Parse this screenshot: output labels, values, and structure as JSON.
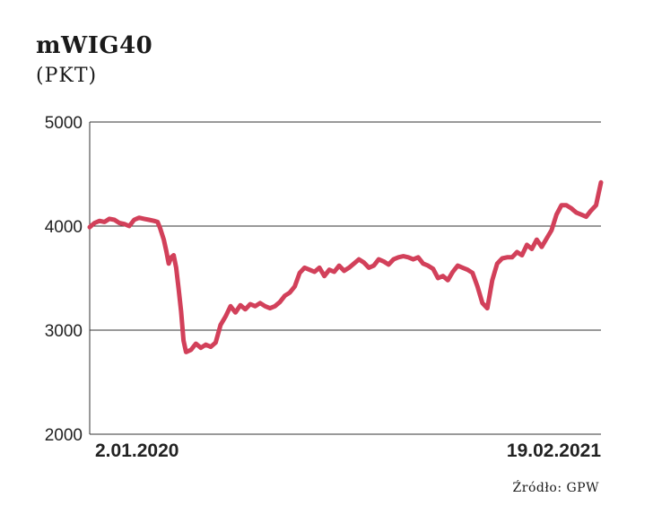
{
  "header": {
    "title": "mWIG40",
    "unit": "(PKT)"
  },
  "source": "Źródło: GPW",
  "colors": {
    "line": "#d2405a",
    "grid": "#333333",
    "text": "#222222"
  },
  "chart_data": {
    "type": "line",
    "title": "mWIG40",
    "ylabel": "(PKT)",
    "ylim": [
      2000,
      5000
    ],
    "yticks": [
      2000,
      3000,
      4000,
      5000
    ],
    "ytick_labels": [
      "2000",
      "3000",
      "4000",
      "5000"
    ],
    "x_start_label": "2.01.2020",
    "x_end_label": "19.02.2021",
    "grid": "horizontal",
    "series": [
      {
        "x": [
          "2020-01-02",
          "2020-01-06",
          "2020-01-10",
          "2020-01-14",
          "2020-01-18",
          "2020-01-22",
          "2020-01-26",
          "2020-01-30",
          "2020-02-03",
          "2020-02-07",
          "2020-02-11",
          "2020-02-15",
          "2020-02-19",
          "2020-02-23",
          "2020-02-26",
          "2020-02-28",
          "2020-03-02",
          "2020-03-04",
          "2020-03-06",
          "2020-03-08",
          "2020-03-10",
          "2020-03-12",
          "2020-03-14",
          "2020-03-16",
          "2020-03-18",
          "2020-03-20",
          "2020-03-24",
          "2020-03-28",
          "2020-04-01",
          "2020-04-05",
          "2020-04-09",
          "2020-04-13",
          "2020-04-17",
          "2020-04-21",
          "2020-04-25",
          "2020-04-29",
          "2020-05-03",
          "2020-05-07",
          "2020-05-11",
          "2020-05-15",
          "2020-05-19",
          "2020-05-23",
          "2020-05-27",
          "2020-05-31",
          "2020-06-04",
          "2020-06-08",
          "2020-06-12",
          "2020-06-16",
          "2020-06-20",
          "2020-06-24",
          "2020-06-28",
          "2020-07-02",
          "2020-07-06",
          "2020-07-10",
          "2020-07-14",
          "2020-07-18",
          "2020-07-22",
          "2020-07-26",
          "2020-07-30",
          "2020-08-03",
          "2020-08-07",
          "2020-08-11",
          "2020-08-15",
          "2020-08-19",
          "2020-08-23",
          "2020-08-27",
          "2020-08-31",
          "2020-09-04",
          "2020-09-08",
          "2020-09-12",
          "2020-09-16",
          "2020-09-20",
          "2020-09-24",
          "2020-09-28",
          "2020-10-02",
          "2020-10-06",
          "2020-10-10",
          "2020-10-14",
          "2020-10-18",
          "2020-10-22",
          "2020-10-26",
          "2020-10-30",
          "2020-11-03",
          "2020-11-07",
          "2020-11-11",
          "2020-11-15",
          "2020-11-19",
          "2020-11-23",
          "2020-11-27",
          "2020-12-01",
          "2020-12-05",
          "2020-12-09",
          "2020-12-13",
          "2020-12-17",
          "2020-12-21",
          "2020-12-25",
          "2020-12-29",
          "2021-01-02",
          "2021-01-06",
          "2021-01-10",
          "2021-01-14",
          "2021-01-18",
          "2021-01-22",
          "2021-01-26",
          "2021-01-30",
          "2021-02-03",
          "2021-02-07",
          "2021-02-11",
          "2021-02-15",
          "2021-02-19"
        ],
        "values": [
          3990,
          4030,
          4050,
          4040,
          4070,
          4060,
          4030,
          4020,
          4000,
          4060,
          4080,
          4070,
          4060,
          4050,
          4040,
          3980,
          3870,
          3760,
          3640,
          3700,
          3720,
          3600,
          3400,
          3180,
          2900,
          2790,
          2810,
          2870,
          2830,
          2860,
          2840,
          2880,
          3050,
          3130,
          3230,
          3170,
          3240,
          3200,
          3250,
          3230,
          3260,
          3230,
          3210,
          3230,
          3270,
          3330,
          3360,
          3420,
          3550,
          3600,
          3580,
          3560,
          3600,
          3520,
          3580,
          3560,
          3620,
          3570,
          3600,
          3640,
          3680,
          3650,
          3600,
          3620,
          3680,
          3660,
          3630,
          3680,
          3700,
          3710,
          3700,
          3680,
          3700,
          3640,
          3620,
          3590,
          3500,
          3520,
          3480,
          3560,
          3620,
          3600,
          3580,
          3550,
          3420,
          3260,
          3210,
          3480,
          3640,
          3690,
          3700,
          3700,
          3750,
          3720,
          3820,
          3780,
          3870,
          3800,
          3880,
          3960,
          4110,
          4200,
          4200,
          4170,
          4130,
          4110,
          4090,
          4150,
          4200,
          4420
        ]
      }
    ]
  }
}
